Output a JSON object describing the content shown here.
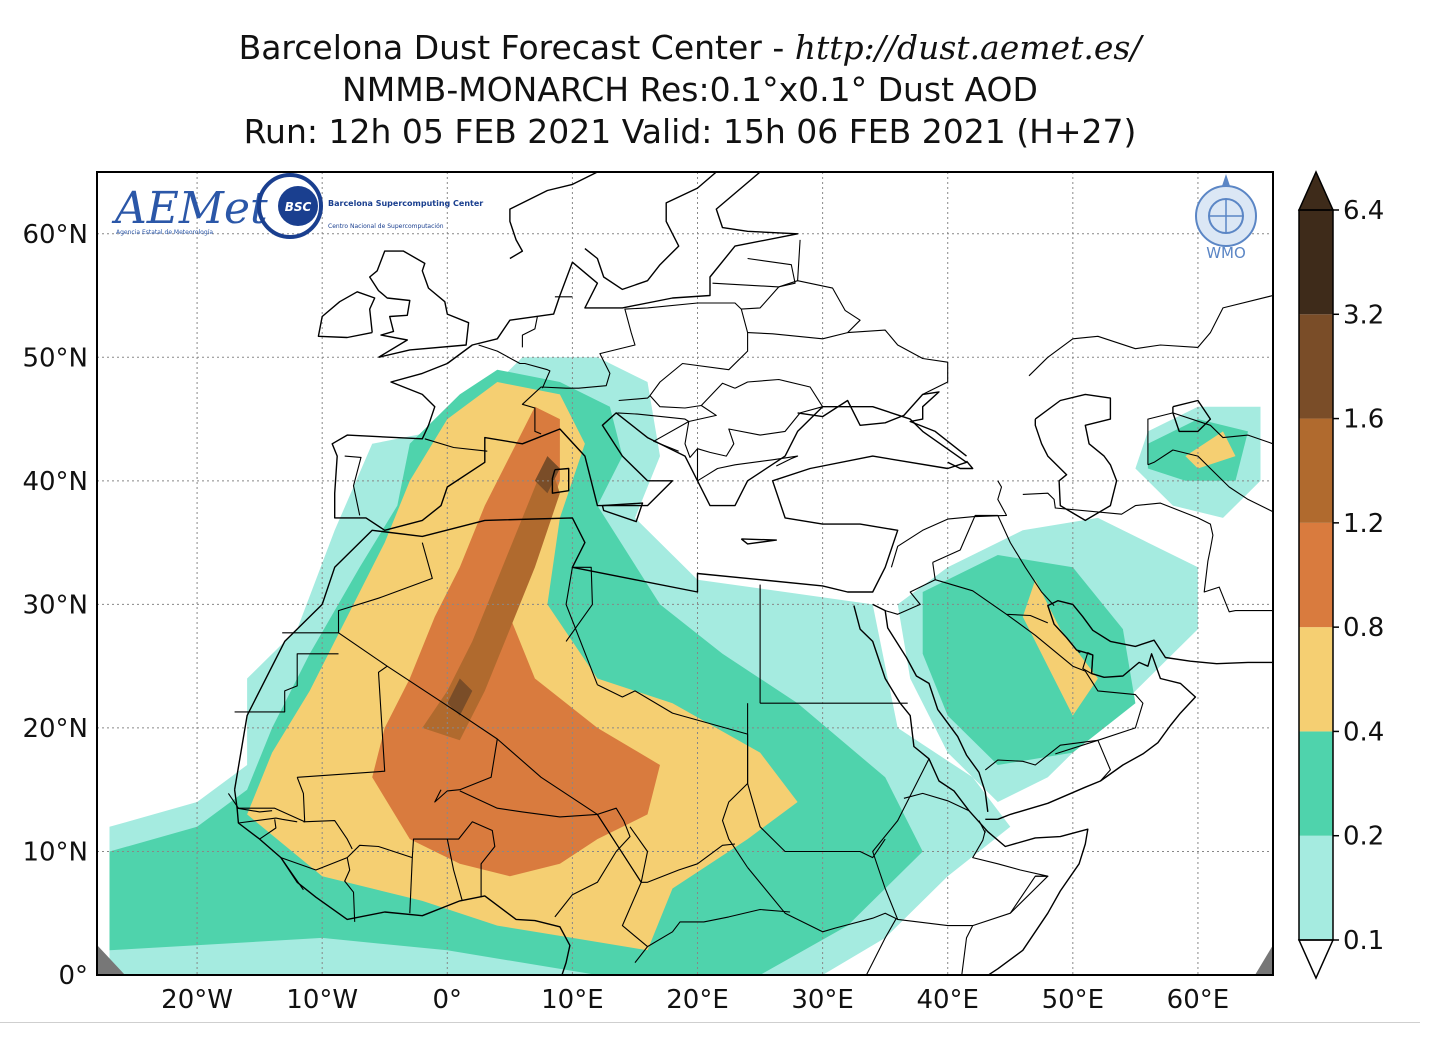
{
  "title": {
    "line1_prefix": "Barcelona Dust Forecast Center - ",
    "line1_url": "http://dust.aemet.es/",
    "line2": "NMMB-MONARCH    Res:0.1°x0.1°    Dust AOD",
    "line3": "Run: 12h 05 FEB 2021    Valid: 15h 06 FEB 2021 (H+27)"
  },
  "map": {
    "lon_range": [
      -28,
      66
    ],
    "lat_range": [
      0,
      65
    ],
    "lon_ticks": [
      {
        "value": -20,
        "label": "20°W"
      },
      {
        "value": -10,
        "label": "10°W"
      },
      {
        "value": 0,
        "label": "0°"
      },
      {
        "value": 10,
        "label": "10°E"
      },
      {
        "value": 20,
        "label": "20°E"
      },
      {
        "value": 30,
        "label": "30°E"
      },
      {
        "value": 40,
        "label": "40°E"
      },
      {
        "value": 50,
        "label": "50°E"
      },
      {
        "value": 60,
        "label": "60°E"
      }
    ],
    "lat_ticks": [
      {
        "value": 0,
        "label": "0°"
      },
      {
        "value": 10,
        "label": "10°N"
      },
      {
        "value": 20,
        "label": "20°N"
      },
      {
        "value": 30,
        "label": "30°N"
      },
      {
        "value": 40,
        "label": "40°N"
      },
      {
        "value": 50,
        "label": "50°N"
      },
      {
        "value": 60,
        "label": "60°N"
      }
    ],
    "grid": true
  },
  "colorbar": {
    "levels": [
      "0.1",
      "0.2",
      "0.4",
      "0.8",
      "1.2",
      "1.6",
      "3.2",
      "6.4"
    ],
    "colors": [
      "#a5ebe0",
      "#4fd3ac",
      "#f5cf72",
      "#d97b3e",
      "#b06a2e",
      "#7a4d28",
      "#3e2b1a"
    ]
  },
  "logos": {
    "aemet": {
      "text": "AEMet",
      "subtext": "Agencia Estatal de Meteorología"
    },
    "bsc": {
      "badge": "BSC",
      "text": "Barcelona Supercomputing Center",
      "subtext": "Centro Nacional de Supercomputación"
    },
    "wmo": {
      "text": "WMO"
    }
  },
  "chart_data": {
    "type": "heatmap",
    "variable": "Dust AOD",
    "bins": [
      0.1,
      0.2,
      0.4,
      0.8,
      1.2,
      1.6,
      3.2,
      6.4
    ],
    "xlim": [
      -28,
      66
    ],
    "ylim": [
      0,
      65
    ],
    "regions": [
      {
        "level": 1,
        "points": [
          [
            -27,
            0
          ],
          [
            -27,
            12
          ],
          [
            -20,
            14
          ],
          [
            -16,
            17
          ],
          [
            -16,
            24
          ],
          [
            -12,
            28
          ],
          [
            -9,
            36
          ],
          [
            -6,
            43
          ],
          [
            -1,
            44
          ],
          [
            3,
            47
          ],
          [
            6,
            50
          ],
          [
            12,
            50
          ],
          [
            16,
            48
          ],
          [
            17,
            42
          ],
          [
            15,
            37
          ],
          [
            20,
            32
          ],
          [
            27,
            31
          ],
          [
            34,
            30
          ],
          [
            36,
            20
          ],
          [
            42,
            16
          ],
          [
            45,
            12
          ],
          [
            40,
            8
          ],
          [
            35,
            3
          ],
          [
            30,
            0
          ]
        ]
      },
      {
        "level": 1,
        "points": [
          [
            36,
            30
          ],
          [
            40,
            33
          ],
          [
            46,
            36
          ],
          [
            52,
            37
          ],
          [
            56,
            35
          ],
          [
            60,
            33
          ],
          [
            60,
            28
          ],
          [
            56,
            24
          ],
          [
            52,
            20
          ],
          [
            48,
            16
          ],
          [
            44,
            14
          ],
          [
            40,
            18
          ],
          [
            37,
            24
          ]
        ]
      },
      {
        "level": 1,
        "points": [
          [
            56,
            44
          ],
          [
            60,
            46
          ],
          [
            65,
            46
          ],
          [
            65,
            40
          ],
          [
            62,
            37
          ],
          [
            58,
            38
          ],
          [
            55,
            41
          ]
        ]
      },
      {
        "level": 2,
        "points": [
          [
            -27,
            2
          ],
          [
            -27,
            10
          ],
          [
            -20,
            12
          ],
          [
            -16,
            15
          ],
          [
            -14,
            20
          ],
          [
            -11,
            26
          ],
          [
            -7,
            33
          ],
          [
            -4,
            38
          ],
          [
            -3,
            43
          ],
          [
            1,
            47
          ],
          [
            4,
            49
          ],
          [
            9,
            48
          ],
          [
            13,
            46
          ],
          [
            14,
            42
          ],
          [
            12,
            38
          ],
          [
            17,
            30
          ],
          [
            22,
            26
          ],
          [
            28,
            22
          ],
          [
            35,
            16
          ],
          [
            38,
            10
          ],
          [
            32,
            4
          ],
          [
            25,
            0
          ],
          [
            12,
            0
          ],
          [
            0,
            2
          ],
          [
            -10,
            3
          ]
        ]
      },
      {
        "level": 2,
        "points": [
          [
            38,
            31
          ],
          [
            44,
            34
          ],
          [
            50,
            33
          ],
          [
            54,
            28
          ],
          [
            55,
            22
          ],
          [
            50,
            18
          ],
          [
            44,
            17
          ],
          [
            40,
            21
          ],
          [
            38,
            26
          ]
        ]
      },
      {
        "level": 2,
        "points": [
          [
            56,
            43
          ],
          [
            60,
            45
          ],
          [
            64,
            44
          ],
          [
            63,
            40
          ],
          [
            59,
            40
          ],
          [
            56,
            41
          ]
        ]
      },
      {
        "level": 3,
        "points": [
          [
            -16,
            13
          ],
          [
            -14,
            18
          ],
          [
            -11,
            23
          ],
          [
            -8,
            29
          ],
          [
            -5,
            35
          ],
          [
            -3,
            40
          ],
          [
            0,
            45
          ],
          [
            4,
            48
          ],
          [
            9,
            47
          ],
          [
            11,
            43
          ],
          [
            9,
            37
          ],
          [
            8,
            30
          ],
          [
            12,
            24
          ],
          [
            18,
            22
          ],
          [
            25,
            18
          ],
          [
            28,
            14
          ],
          [
            24,
            11
          ],
          [
            18,
            7
          ],
          [
            16,
            2
          ],
          [
            10,
            3
          ],
          [
            4,
            4
          ],
          [
            -2,
            6
          ],
          [
            -10,
            8
          ]
        ]
      },
      {
        "level": 3,
        "points": [
          [
            47,
            32
          ],
          [
            49,
            28
          ],
          [
            52,
            24
          ],
          [
            50,
            21
          ],
          [
            48,
            25
          ],
          [
            46,
            29
          ]
        ]
      },
      {
        "level": 3,
        "points": [
          [
            59,
            42
          ],
          [
            62,
            44
          ],
          [
            63,
            42
          ],
          [
            60,
            41
          ]
        ]
      },
      {
        "level": 4,
        "points": [
          [
            -6,
            16
          ],
          [
            -5,
            20
          ],
          [
            -3,
            24
          ],
          [
            -1,
            29
          ],
          [
            1,
            33
          ],
          [
            3,
            38
          ],
          [
            5,
            42
          ],
          [
            7,
            46
          ],
          [
            9,
            45
          ],
          [
            9,
            40
          ],
          [
            7,
            34
          ],
          [
            5,
            29
          ],
          [
            7,
            24
          ],
          [
            12,
            20
          ],
          [
            17,
            17
          ],
          [
            16,
            13
          ],
          [
            12,
            11
          ],
          [
            9,
            9
          ],
          [
            5,
            8
          ],
          [
            1,
            9
          ],
          [
            -3,
            11
          ]
        ]
      },
      {
        "level": 5,
        "points": [
          [
            -2,
            20
          ],
          [
            0,
            23
          ],
          [
            2,
            27
          ],
          [
            4,
            32
          ],
          [
            6,
            37
          ],
          [
            8,
            42
          ],
          [
            9,
            39
          ],
          [
            7,
            33
          ],
          [
            5,
            28
          ],
          [
            3,
            23
          ],
          [
            1,
            19
          ]
        ]
      },
      {
        "level": 6,
        "points": [
          [
            0,
            22
          ],
          [
            1,
            24
          ],
          [
            2,
            23
          ],
          [
            1,
            21
          ]
        ]
      },
      {
        "level": 6,
        "points": [
          [
            7,
            40
          ],
          [
            8,
            42
          ],
          [
            9,
            41
          ],
          [
            8,
            39
          ]
        ]
      }
    ]
  }
}
